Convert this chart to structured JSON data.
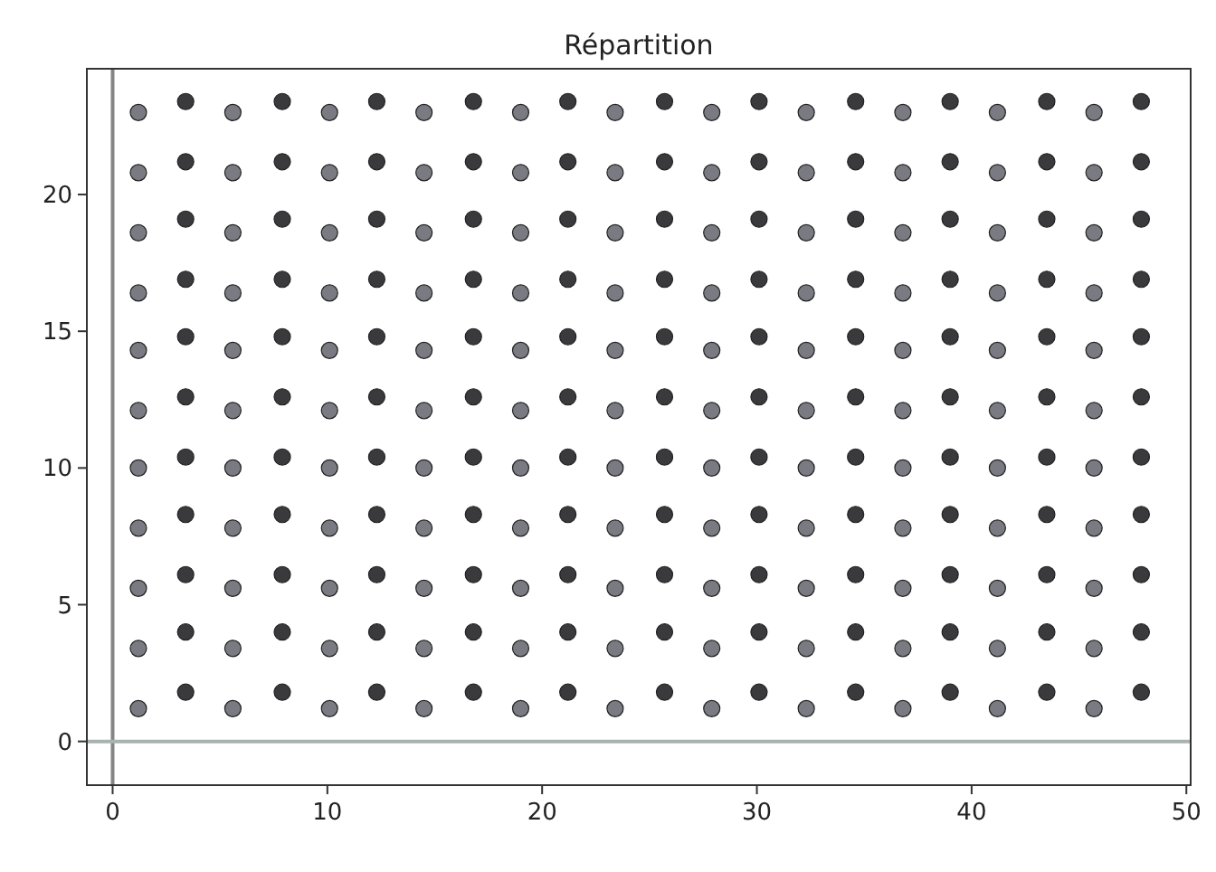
{
  "chart_data": {
    "type": "scatter",
    "title": "Répartition",
    "xlim": [
      -1.2,
      50.2
    ],
    "ylim": [
      -1.6,
      24.6
    ],
    "xticks": [
      0,
      10,
      20,
      30,
      40,
      50
    ],
    "yticks": [
      0,
      5,
      10,
      15,
      20
    ],
    "grid": false,
    "marker": "circle",
    "ref_lines": [
      {
        "axis": "x",
        "value": 0,
        "color": "#858585"
      },
      {
        "axis": "y",
        "value": 0,
        "color": "#a9b3ae"
      }
    ],
    "series": [
      {
        "color": "#7a7a82",
        "x": [
          1.2,
          1.2,
          1.2,
          1.2,
          1.2,
          1.2,
          1.2,
          1.2,
          1.2,
          1.2,
          1.2,
          5.6,
          5.6,
          5.6,
          5.6,
          5.6,
          5.6,
          5.6,
          5.6,
          5.6,
          5.6,
          5.6,
          10.1,
          10.1,
          10.1,
          10.1,
          10.1,
          10.1,
          10.1,
          10.1,
          10.1,
          10.1,
          10.1,
          14.5,
          14.5,
          14.5,
          14.5,
          14.5,
          14.5,
          14.5,
          14.5,
          14.5,
          14.5,
          14.5,
          19.0,
          19.0,
          19.0,
          19.0,
          19.0,
          19.0,
          19.0,
          19.0,
          19.0,
          19.0,
          19.0,
          23.4,
          23.4,
          23.4,
          23.4,
          23.4,
          23.4,
          23.4,
          23.4,
          23.4,
          23.4,
          23.4,
          27.9,
          27.9,
          27.9,
          27.9,
          27.9,
          27.9,
          27.9,
          27.9,
          27.9,
          27.9,
          27.9,
          32.3,
          32.3,
          32.3,
          32.3,
          32.3,
          32.3,
          32.3,
          32.3,
          32.3,
          32.3,
          32.3,
          36.8,
          36.8,
          36.8,
          36.8,
          36.8,
          36.8,
          36.8,
          36.8,
          36.8,
          36.8,
          36.8,
          41.2,
          41.2,
          41.2,
          41.2,
          41.2,
          41.2,
          41.2,
          41.2,
          41.2,
          41.2,
          41.2,
          45.7,
          45.7,
          45.7,
          45.7,
          45.7,
          45.7,
          45.7,
          45.7,
          45.7,
          45.7,
          45.7
        ],
        "values": [
          1.2,
          3.4,
          5.6,
          7.8,
          10.0,
          12.1,
          14.3,
          16.4,
          18.6,
          20.8,
          23.0,
          1.2,
          3.4,
          5.6,
          7.8,
          10.0,
          12.1,
          14.3,
          16.4,
          18.6,
          20.8,
          23.0,
          1.2,
          3.4,
          5.6,
          7.8,
          10.0,
          12.1,
          14.3,
          16.4,
          18.6,
          20.8,
          23.0,
          1.2,
          3.4,
          5.6,
          7.8,
          10.0,
          12.1,
          14.3,
          16.4,
          18.6,
          20.8,
          23.0,
          1.2,
          3.4,
          5.6,
          7.8,
          10.0,
          12.1,
          14.3,
          16.4,
          18.6,
          20.8,
          23.0,
          1.2,
          3.4,
          5.6,
          7.8,
          10.0,
          12.1,
          14.3,
          16.4,
          18.6,
          20.8,
          23.0,
          1.2,
          3.4,
          5.6,
          7.8,
          10.0,
          12.1,
          14.3,
          16.4,
          18.6,
          20.8,
          23.0,
          1.2,
          3.4,
          5.6,
          7.8,
          10.0,
          12.1,
          14.3,
          16.4,
          18.6,
          20.8,
          23.0,
          1.2,
          3.4,
          5.6,
          7.8,
          10.0,
          12.1,
          14.3,
          16.4,
          18.6,
          20.8,
          23.0,
          1.2,
          3.4,
          5.6,
          7.8,
          10.0,
          12.1,
          14.3,
          16.4,
          18.6,
          20.8,
          23.0,
          1.2,
          3.4,
          5.6,
          7.8,
          10.0,
          12.1,
          14.3,
          16.4,
          18.6,
          20.8,
          23.0
        ]
      },
      {
        "color": "#3a3a3c",
        "x": [
          3.4,
          3.4,
          3.4,
          3.4,
          3.4,
          3.4,
          3.4,
          3.4,
          3.4,
          3.4,
          3.4,
          7.9,
          7.9,
          7.9,
          7.9,
          7.9,
          7.9,
          7.9,
          7.9,
          7.9,
          7.9,
          7.9,
          12.3,
          12.3,
          12.3,
          12.3,
          12.3,
          12.3,
          12.3,
          12.3,
          12.3,
          12.3,
          12.3,
          16.8,
          16.8,
          16.8,
          16.8,
          16.8,
          16.8,
          16.8,
          16.8,
          16.8,
          16.8,
          16.8,
          21.2,
          21.2,
          21.2,
          21.2,
          21.2,
          21.2,
          21.2,
          21.2,
          21.2,
          21.2,
          21.2,
          25.7,
          25.7,
          25.7,
          25.7,
          25.7,
          25.7,
          25.7,
          25.7,
          25.7,
          25.7,
          25.7,
          30.1,
          30.1,
          30.1,
          30.1,
          30.1,
          30.1,
          30.1,
          30.1,
          30.1,
          30.1,
          30.1,
          34.6,
          34.6,
          34.6,
          34.6,
          34.6,
          34.6,
          34.6,
          34.6,
          34.6,
          34.6,
          34.6,
          39.0,
          39.0,
          39.0,
          39.0,
          39.0,
          39.0,
          39.0,
          39.0,
          39.0,
          39.0,
          39.0,
          43.5,
          43.5,
          43.5,
          43.5,
          43.5,
          43.5,
          43.5,
          43.5,
          43.5,
          43.5,
          43.5,
          47.9,
          47.9,
          47.9,
          47.9,
          47.9,
          47.9,
          47.9,
          47.9,
          47.9,
          47.9,
          47.9
        ],
        "values": [
          1.8,
          4.0,
          6.1,
          8.3,
          10.4,
          12.6,
          14.8,
          16.9,
          19.1,
          21.2,
          23.4,
          1.8,
          4.0,
          6.1,
          8.3,
          10.4,
          12.6,
          14.8,
          16.9,
          19.1,
          21.2,
          23.4,
          1.8,
          4.0,
          6.1,
          8.3,
          10.4,
          12.6,
          14.8,
          16.9,
          19.1,
          21.2,
          23.4,
          1.8,
          4.0,
          6.1,
          8.3,
          10.4,
          12.6,
          14.8,
          16.9,
          19.1,
          21.2,
          23.4,
          1.8,
          4.0,
          6.1,
          8.3,
          10.4,
          12.6,
          14.8,
          16.9,
          19.1,
          21.2,
          23.4,
          1.8,
          4.0,
          6.1,
          8.3,
          10.4,
          12.6,
          14.8,
          16.9,
          19.1,
          21.2,
          23.4,
          1.8,
          4.0,
          6.1,
          8.3,
          10.4,
          12.6,
          14.8,
          16.9,
          19.1,
          21.2,
          23.4,
          1.8,
          4.0,
          6.1,
          8.3,
          10.4,
          12.6,
          14.8,
          16.9,
          19.1,
          21.2,
          23.4,
          1.8,
          4.0,
          6.1,
          8.3,
          10.4,
          12.6,
          14.8,
          16.9,
          19.1,
          21.2,
          23.4,
          1.8,
          4.0,
          6.1,
          8.3,
          10.4,
          12.6,
          14.8,
          16.9,
          19.1,
          21.2,
          23.4,
          1.8,
          4.0,
          6.1,
          8.3,
          10.4,
          12.6,
          14.8,
          16.9,
          19.1,
          21.2,
          23.4
        ]
      }
    ]
  }
}
